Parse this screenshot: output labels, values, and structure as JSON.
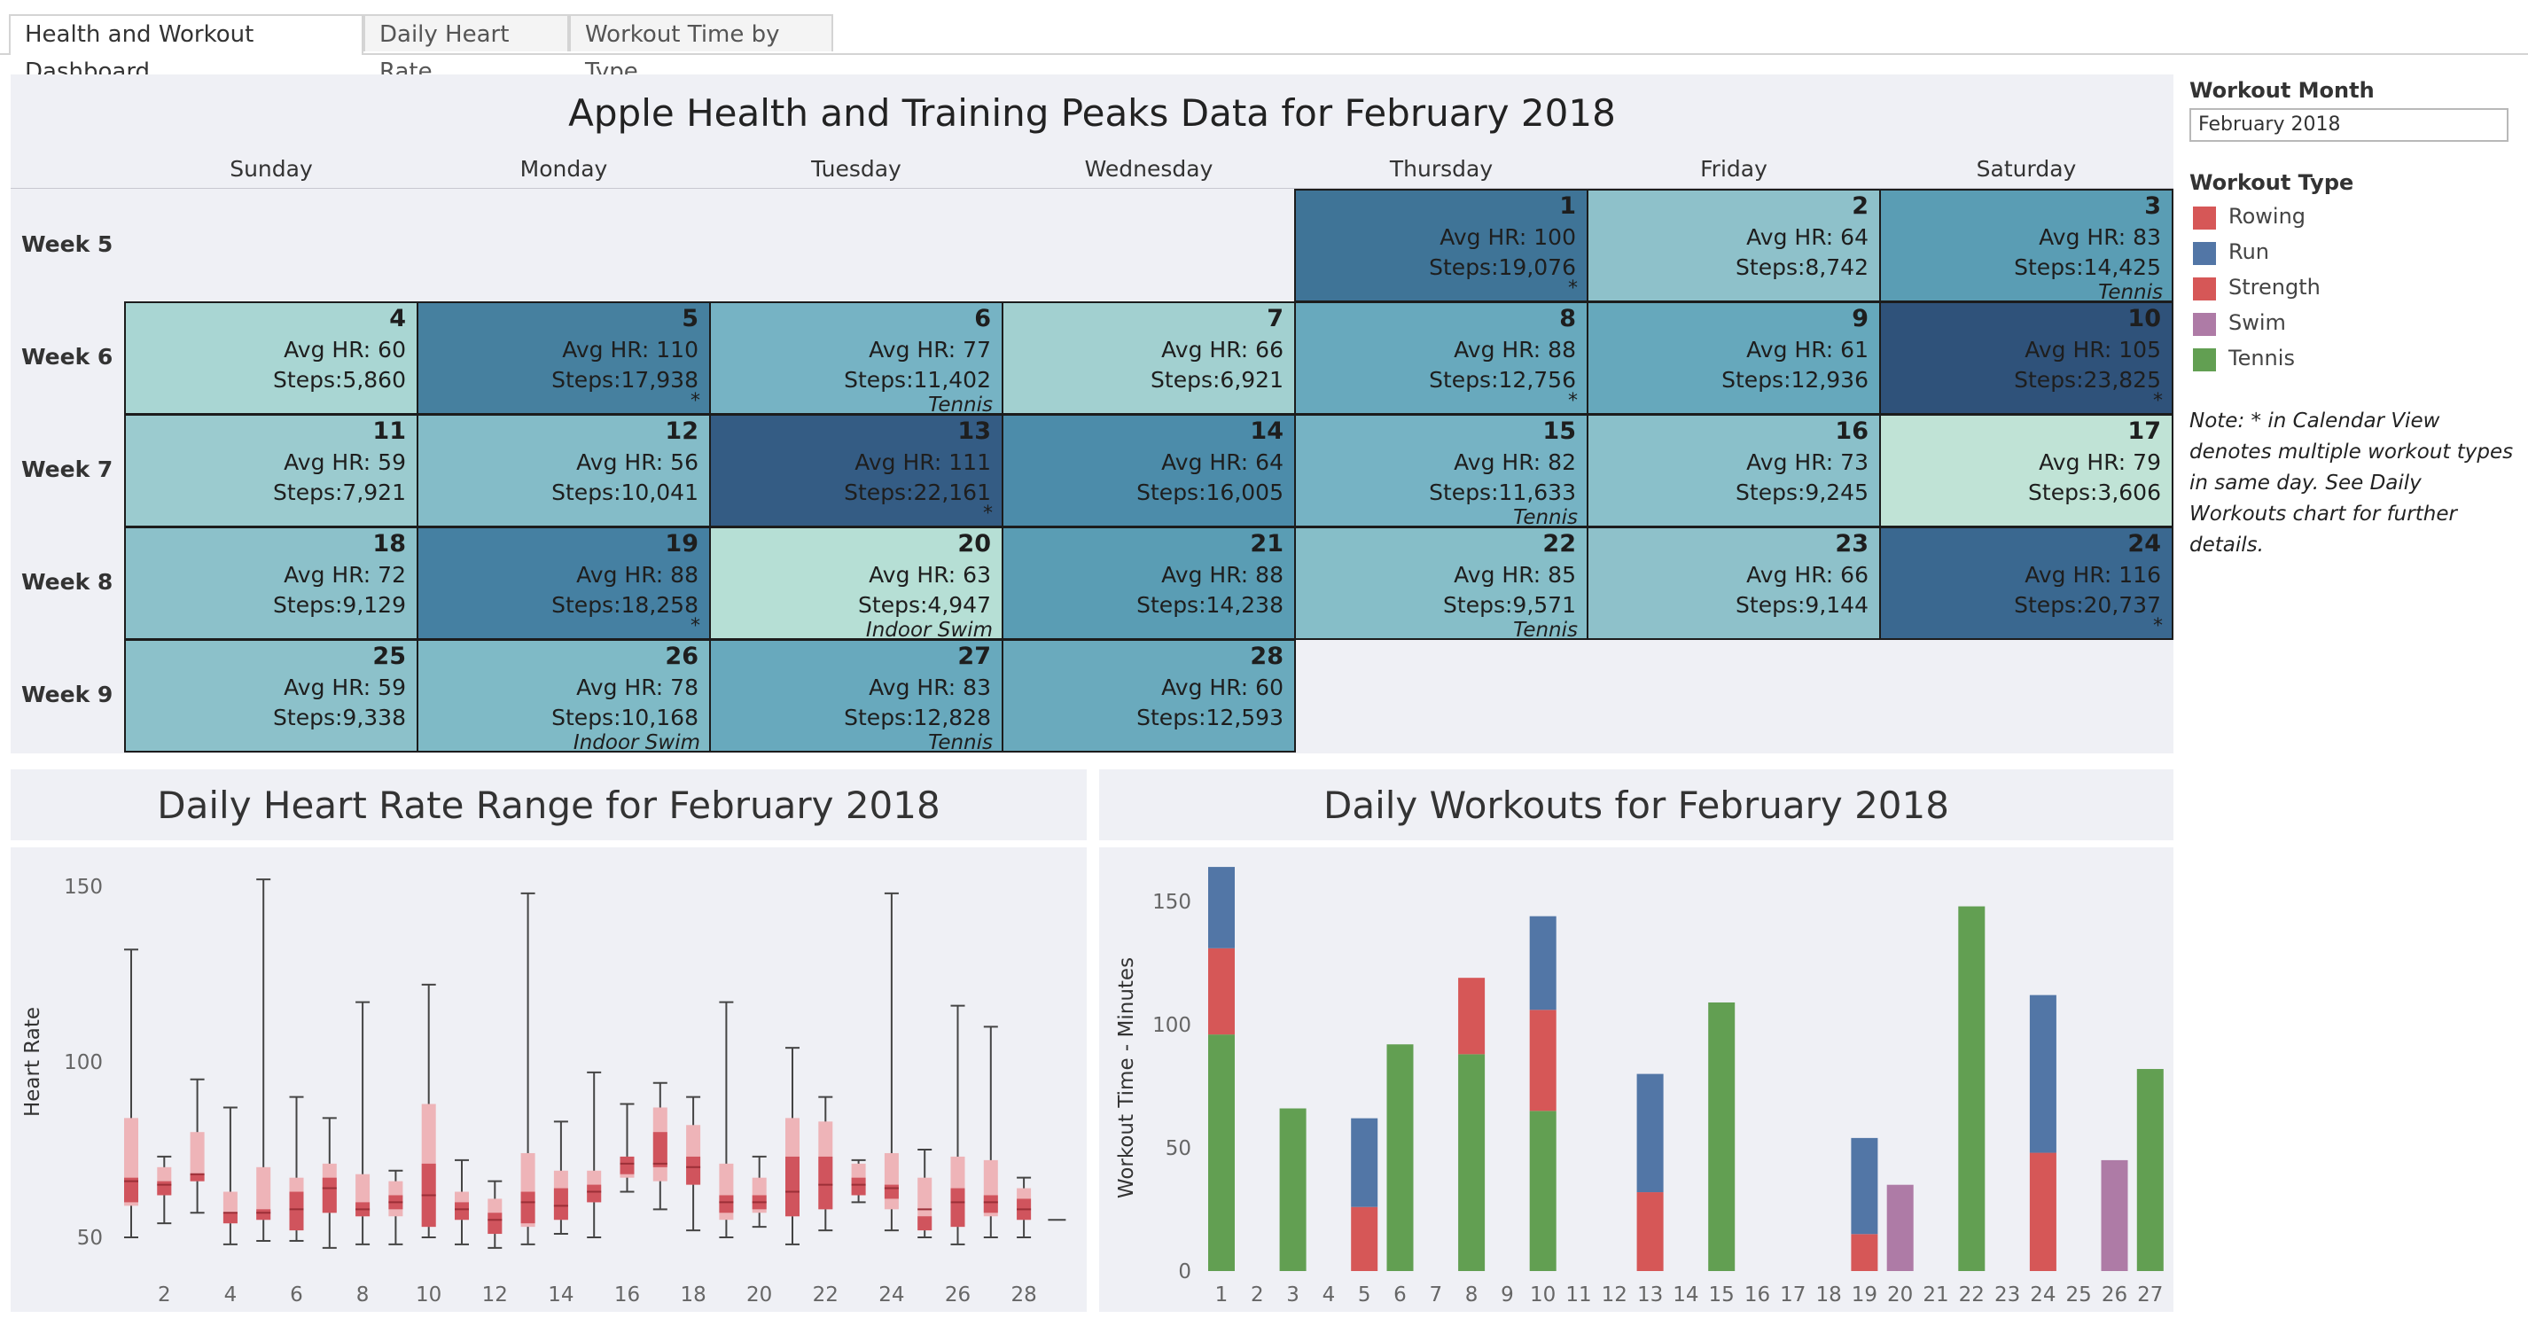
{
  "tabs": [
    {
      "label": "Health and Workout Dashboard",
      "active": true
    },
    {
      "label": "Daily Heart Rate",
      "active": false
    },
    {
      "label": "Workout Time by Type",
      "active": false
    }
  ],
  "calendar": {
    "title": "Apple Health and Training Peaks Data for February 2018",
    "day_names": [
      "Sunday",
      "Monday",
      "Tuesday",
      "Wednesday",
      "Thursday",
      "Friday",
      "Saturday"
    ],
    "weeks": [
      "Week 5",
      "Week 6",
      "Week 7",
      "Week 8",
      "Week 9"
    ],
    "first_weekday_index": 4,
    "days": [
      {
        "day": "1",
        "hr": "Avg HR: 100",
        "steps": "Steps:19,076",
        "star": "*",
        "note": "",
        "color": "#3f7497"
      },
      {
        "day": "2",
        "hr": "Avg HR: 64",
        "steps": "Steps:8,742",
        "star": "",
        "note": "",
        "color": "#8ec1ca"
      },
      {
        "day": "3",
        "hr": "Avg HR: 83",
        "steps": "Steps:14,425",
        "star": "",
        "note": "Tennis",
        "color": "#5a9db4"
      },
      {
        "day": "4",
        "hr": "Avg HR: 60",
        "steps": "Steps:5,860",
        "star": "",
        "note": "",
        "color": "#a9d6d3"
      },
      {
        "day": "5",
        "hr": "Avg HR: 110",
        "steps": "Steps:17,938",
        "star": "*",
        "note": "",
        "color": "#46809f"
      },
      {
        "day": "6",
        "hr": "Avg HR: 77",
        "steps": "Steps:11,402",
        "star": "",
        "note": "Tennis",
        "color": "#76b3c4"
      },
      {
        "day": "7",
        "hr": "Avg HR: 66",
        "steps": "Steps:6,921",
        "star": "",
        "note": "",
        "color": "#a2d0d0"
      },
      {
        "day": "8",
        "hr": "Avg HR: 88",
        "steps": "Steps:12,756",
        "star": "*",
        "note": "",
        "color": "#68a9bd"
      },
      {
        "day": "9",
        "hr": "Avg HR: 61",
        "steps": "Steps:12,936",
        "star": "",
        "note": "",
        "color": "#66a8bc"
      },
      {
        "day": "10",
        "hr": "Avg HR: 105",
        "steps": "Steps:23,825",
        "star": "*",
        "note": "",
        "color": "#2f527a"
      },
      {
        "day": "11",
        "hr": "Avg HR: 59",
        "steps": "Steps:7,921",
        "star": "",
        "note": "",
        "color": "#9bcbcf"
      },
      {
        "day": "12",
        "hr": "Avg HR: 56",
        "steps": "Steps:10,041",
        "star": "",
        "note": "",
        "color": "#84bcc8"
      },
      {
        "day": "13",
        "hr": "Avg HR: 111",
        "steps": "Steps:22,161",
        "star": "*",
        "note": "",
        "color": "#345c84"
      },
      {
        "day": "14",
        "hr": "Avg HR: 64",
        "steps": "Steps:16,005",
        "star": "",
        "note": "",
        "color": "#4c8caa"
      },
      {
        "day": "15",
        "hr": "Avg HR: 82",
        "steps": "Steps:11,633",
        "star": "",
        "note": "Tennis",
        "color": "#76b3c4"
      },
      {
        "day": "16",
        "hr": "Avg HR: 73",
        "steps": "Steps:9,245",
        "star": "",
        "note": "",
        "color": "#8ac0ca"
      },
      {
        "day": "17",
        "hr": "Avg HR: 79",
        "steps": "Steps:3,606",
        "star": "",
        "note": "",
        "color": "#c0e3d6"
      },
      {
        "day": "18",
        "hr": "Avg HR: 72",
        "steps": "Steps:9,129",
        "star": "",
        "note": "",
        "color": "#8cc1ca"
      },
      {
        "day": "19",
        "hr": "Avg HR: 88",
        "steps": "Steps:18,258",
        "star": "*",
        "note": "",
        "color": "#4580a2"
      },
      {
        "day": "20",
        "hr": "Avg HR: 63",
        "steps": "Steps:4,947",
        "star": "",
        "note": "Indoor Swim",
        "color": "#b6dfd5"
      },
      {
        "day": "21",
        "hr": "Avg HR: 88",
        "steps": "Steps:14,238",
        "star": "",
        "note": "",
        "color": "#5a9db4"
      },
      {
        "day": "22",
        "hr": "Avg HR: 85",
        "steps": "Steps:9,571",
        "star": "",
        "note": "Tennis",
        "color": "#86bec8"
      },
      {
        "day": "23",
        "hr": "Avg HR: 66",
        "steps": "Steps:9,144",
        "star": "",
        "note": "",
        "color": "#8ec1ca"
      },
      {
        "day": "24",
        "hr": "Avg HR: 116",
        "steps": "Steps:20,737",
        "star": "*",
        "note": "",
        "color": "#3a6890"
      },
      {
        "day": "25",
        "hr": "Avg HR: 59",
        "steps": "Steps:9,338",
        "star": "",
        "note": "",
        "color": "#8cc1ca"
      },
      {
        "day": "26",
        "hr": "Avg HR: 78",
        "steps": "Steps:10,168",
        "star": "",
        "note": "Indoor Swim",
        "color": "#7fbac6"
      },
      {
        "day": "27",
        "hr": "Avg HR: 83",
        "steps": "Steps:12,828",
        "star": "",
        "note": "Tennis",
        "color": "#68a9bd"
      },
      {
        "day": "28",
        "hr": "Avg HR: 60",
        "steps": "Steps:12,593",
        "star": "",
        "note": "",
        "color": "#6aaabd"
      }
    ]
  },
  "legend": {
    "month_title": "Workout Month",
    "month_value": "February 2018",
    "type_title": "Workout Type",
    "types": [
      {
        "label": "Rowing",
        "color": "#d65757"
      },
      {
        "label": "Run",
        "color": "#5276a6"
      },
      {
        "label": "Strength",
        "color": "#d65757"
      },
      {
        "label": "Swim",
        "color": "#ae7ba6"
      },
      {
        "label": "Tennis",
        "color": "#629f52"
      }
    ],
    "note": "Note: * in Calendar View denotes multiple workout types in same day. See Daily Workouts chart for further details."
  },
  "heart_panel": {
    "title": "Daily Heart Rate Range for February 2018"
  },
  "workout_panel": {
    "title": "Daily Workouts for February 2018"
  },
  "chart_data": [
    {
      "type": "box",
      "title": "Daily Heart Rate Range for February 2018",
      "ylabel": "Heart Rate",
      "yticks": [
        50,
        100,
        150
      ],
      "x_tick_labels": [
        "2",
        "4",
        "6",
        "8",
        "10",
        "12",
        "14",
        "16",
        "18",
        "20",
        "22",
        "24",
        "26",
        "28"
      ],
      "days": [
        {
          "x": 1,
          "min": 50,
          "q1": 59,
          "median": 66,
          "q3": 84,
          "max": 132,
          "inner_low": 60,
          "inner_high": 67
        },
        {
          "x": 2,
          "min": 54,
          "q1": 62,
          "median": 65,
          "q3": 70,
          "max": 73,
          "inner_low": 62,
          "inner_high": 66
        },
        {
          "x": 3,
          "min": 57,
          "q1": 66,
          "median": 68,
          "q3": 80,
          "max": 95,
          "inner_low": 66,
          "inner_high": 68
        },
        {
          "x": 4,
          "min": 48,
          "q1": 54,
          "median": 57,
          "q3": 63,
          "max": 87,
          "inner_low": 54,
          "inner_high": 57
        },
        {
          "x": 5,
          "min": 49,
          "q1": 55,
          "median": 57,
          "q3": 70,
          "max": 152,
          "inner_low": 55,
          "inner_high": 58
        },
        {
          "x": 6,
          "min": 49,
          "q1": 52,
          "median": 58,
          "q3": 67,
          "max": 90,
          "inner_low": 52,
          "inner_high": 63
        },
        {
          "x": 7,
          "min": 47,
          "q1": 57,
          "median": 64,
          "q3": 71,
          "max": 84,
          "inner_low": 57,
          "inner_high": 67
        },
        {
          "x": 8,
          "min": 48,
          "q1": 56,
          "median": 58,
          "q3": 68,
          "max": 117,
          "inner_low": 56,
          "inner_high": 60
        },
        {
          "x": 9,
          "min": 48,
          "q1": 56,
          "median": 60,
          "q3": 66,
          "max": 69,
          "inner_low": 58,
          "inner_high": 62
        },
        {
          "x": 10,
          "min": 50,
          "q1": 53,
          "median": 62,
          "q3": 88,
          "max": 122,
          "inner_low": 53,
          "inner_high": 71
        },
        {
          "x": 11,
          "min": 48,
          "q1": 55,
          "median": 58,
          "q3": 63,
          "max": 72,
          "inner_low": 55,
          "inner_high": 60
        },
        {
          "x": 12,
          "min": 47,
          "q1": 51,
          "median": 55,
          "q3": 61,
          "max": 66,
          "inner_low": 51,
          "inner_high": 57
        },
        {
          "x": 13,
          "min": 48,
          "q1": 53,
          "median": 60,
          "q3": 74,
          "max": 148,
          "inner_low": 54,
          "inner_high": 63
        },
        {
          "x": 14,
          "min": 51,
          "q1": 55,
          "median": 59,
          "q3": 69,
          "max": 83,
          "inner_low": 55,
          "inner_high": 64
        },
        {
          "x": 15,
          "min": 50,
          "q1": 60,
          "median": 63,
          "q3": 69,
          "max": 97,
          "inner_low": 60,
          "inner_high": 65
        },
        {
          "x": 16,
          "min": 63,
          "q1": 67,
          "median": 71,
          "q3": 73,
          "max": 88,
          "inner_low": 68,
          "inner_high": 73
        },
        {
          "x": 17,
          "min": 58,
          "q1": 66,
          "median": 71,
          "q3": 87,
          "max": 94,
          "inner_low": 70,
          "inner_high": 80
        },
        {
          "x": 18,
          "min": 52,
          "q1": 65,
          "median": 70,
          "q3": 82,
          "max": 90,
          "inner_low": 65,
          "inner_high": 73
        },
        {
          "x": 19,
          "min": 50,
          "q1": 55,
          "median": 60,
          "q3": 71,
          "max": 117,
          "inner_low": 57,
          "inner_high": 62
        },
        {
          "x": 20,
          "min": 53,
          "q1": 57,
          "median": 60,
          "q3": 67,
          "max": 73,
          "inner_low": 58,
          "inner_high": 62
        },
        {
          "x": 21,
          "min": 48,
          "q1": 56,
          "median": 63,
          "q3": 84,
          "max": 104,
          "inner_low": 56,
          "inner_high": 73
        },
        {
          "x": 22,
          "min": 52,
          "q1": 58,
          "median": 65,
          "q3": 83,
          "max": 90,
          "inner_low": 58,
          "inner_high": 73
        },
        {
          "x": 23,
          "min": 60,
          "q1": 62,
          "median": 65,
          "q3": 71,
          "max": 72,
          "inner_low": 62,
          "inner_high": 67
        },
        {
          "x": 24,
          "min": 52,
          "q1": 58,
          "median": 64,
          "q3": 74,
          "max": 148,
          "inner_low": 61,
          "inner_high": 65
        },
        {
          "x": 25,
          "min": 50,
          "q1": 52,
          "median": 58,
          "q3": 67,
          "max": 75,
          "inner_low": 52,
          "inner_high": 56
        },
        {
          "x": 26,
          "min": 48,
          "q1": 53,
          "median": 60,
          "q3": 73,
          "max": 116,
          "inner_low": 53,
          "inner_high": 64
        },
        {
          "x": 27,
          "min": 50,
          "q1": 56,
          "median": 60,
          "q3": 72,
          "max": 110,
          "inner_low": 57,
          "inner_high": 62
        },
        {
          "x": 28,
          "min": 50,
          "q1": 55,
          "median": 58,
          "q3": 64,
          "max": 67,
          "inner_low": 55,
          "inner_high": 61
        },
        {
          "x": 29,
          "min": 55,
          "q1": 55,
          "median": 55,
          "q3": 55,
          "max": 55,
          "inner_low": 55,
          "inner_high": 55
        }
      ]
    },
    {
      "type": "stacked-bar",
      "title": "Daily Workouts for February 2018",
      "ylabel": "Workout Time - Minutes",
      "yticks": [
        0,
        50,
        100,
        150
      ],
      "categories": [
        "1",
        "2",
        "3",
        "4",
        "5",
        "6",
        "7",
        "8",
        "9",
        "10",
        "11",
        "12",
        "13",
        "14",
        "15",
        "16",
        "17",
        "18",
        "19",
        "20",
        "21",
        "22",
        "23",
        "24",
        "25",
        "26",
        "27"
      ],
      "series": [
        {
          "name": "Tennis",
          "color": "#629f52",
          "values": [
            96,
            0,
            66,
            0,
            0,
            92,
            0,
            88,
            0,
            65,
            0,
            0,
            0,
            0,
            109,
            0,
            0,
            0,
            0,
            0,
            0,
            148,
            0,
            0,
            0,
            0,
            82
          ]
        },
        {
          "name": "Strength",
          "color": "#d65757",
          "values": [
            35,
            0,
            0,
            0,
            26,
            0,
            0,
            31,
            0,
            41,
            0,
            0,
            32,
            0,
            0,
            0,
            0,
            0,
            15,
            0,
            0,
            0,
            0,
            48,
            0,
            0,
            0
          ]
        },
        {
          "name": "Run",
          "color": "#5276a6",
          "values": [
            33,
            0,
            0,
            0,
            36,
            0,
            0,
            0,
            0,
            38,
            0,
            0,
            48,
            0,
            0,
            0,
            0,
            0,
            39,
            0,
            0,
            0,
            0,
            64,
            0,
            0,
            0
          ]
        },
        {
          "name": "Swim",
          "color": "#ae7ba6",
          "values": [
            0,
            0,
            0,
            0,
            0,
            0,
            0,
            0,
            0,
            0,
            0,
            0,
            0,
            0,
            0,
            0,
            0,
            0,
            0,
            35,
            0,
            0,
            0,
            0,
            0,
            45,
            0
          ]
        }
      ]
    }
  ]
}
